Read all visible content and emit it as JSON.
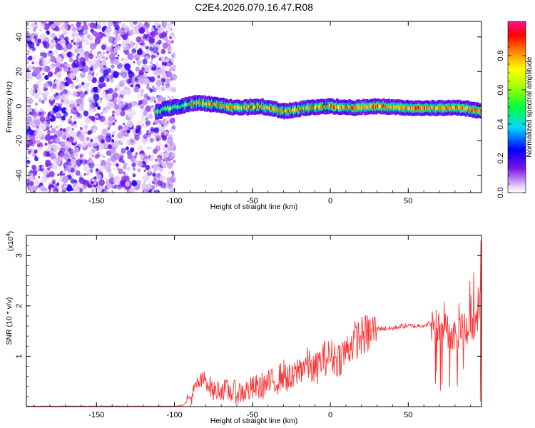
{
  "figure": {
    "title": "C2E4.2026.070.16.47.R08"
  },
  "chart_data": [
    {
      "type": "heatmap",
      "title": "C2E4.2026.070.16.47.R08",
      "xlabel": "Height of straight line (km)",
      "ylabel": "Frequency (Hz)",
      "xlim": [
        -195,
        97
      ],
      "ylim": [
        -50,
        49
      ],
      "x_ticks": [
        -150,
        -100,
        -50,
        0,
        50
      ],
      "y_ticks": [
        -40,
        -20,
        0,
        20,
        40
      ],
      "colorbar": {
        "label": "Normalized spectral amplitude",
        "range": [
          0.0,
          1.0
        ],
        "ticks": [
          "0.0",
          "0.2",
          "0.4",
          "0.6",
          "0.8"
        ],
        "colormap": [
          "#ffffff",
          "#7b16e8",
          "#0000ff",
          "#00d8ff",
          "#00ff3c",
          "#ffff00",
          "#ff8800",
          "#ff0000",
          "#ff1493"
        ]
      },
      "regions": [
        {
          "description_x_range": [
            -195,
            -100
          ],
          "frequency_range": [
            -50,
            49
          ],
          "amplitude_range": [
            0.05,
            0.3
          ]
        },
        {
          "description_x_range": [
            -100,
            97
          ],
          "frequency_range": [
            -4,
            5
          ],
          "amplitude_range": [
            0.2,
            1.0
          ]
        }
      ],
      "ridge_center_points": [
        {
          "x": -108,
          "y": -2
        },
        {
          "x": -85,
          "y": 2
        },
        {
          "x": -75,
          "y": 1
        },
        {
          "x": -60,
          "y": -1
        },
        {
          "x": -45,
          "y": 0
        },
        {
          "x": -30,
          "y": -3
        },
        {
          "x": -15,
          "y": -1
        },
        {
          "x": 0,
          "y": 0
        },
        {
          "x": 15,
          "y": -1
        },
        {
          "x": 30,
          "y": 0
        },
        {
          "x": 50,
          "y": -1
        },
        {
          "x": 70,
          "y": -1
        },
        {
          "x": 85,
          "y": -1
        },
        {
          "x": 97,
          "y": -3
        }
      ]
    },
    {
      "type": "line",
      "xlabel": "Height of straight line (km)",
      "ylabel": "SNR (10 * v/v)",
      "y_multiplier": "(x10^4)",
      "xlim": [
        -195,
        97
      ],
      "ylim": [
        0,
        3.4
      ],
      "x_ticks": [
        -150,
        -100,
        -50,
        0,
        50
      ],
      "y_ticks": [
        1,
        2,
        3
      ],
      "series": [
        {
          "color": "#ff3333",
          "x": [
            -195,
            -150,
            -100,
            -95,
            -90,
            -85,
            -80,
            -75,
            -70,
            -65,
            -60,
            -55,
            -50,
            -45,
            -40,
            -35,
            -30,
            -25,
            -20,
            -15,
            -10,
            -5,
            0,
            5,
            10,
            15,
            20,
            25,
            30,
            35,
            40,
            45,
            50,
            55,
            60,
            65,
            70,
            75,
            80,
            85,
            90,
            95,
            97
          ],
          "y": [
            0.01,
            0.01,
            0.01,
            0.02,
            0.15,
            0.45,
            0.55,
            0.3,
            0.35,
            0.3,
            0.28,
            0.3,
            0.35,
            0.4,
            0.45,
            0.5,
            0.65,
            0.5,
            0.75,
            0.85,
            0.7,
            0.95,
            1.0,
            0.95,
            1.1,
            1.3,
            1.4,
            1.45,
            1.55,
            1.55,
            1.55,
            1.6,
            1.6,
            1.6,
            1.62,
            1.65,
            1.6,
            1.5,
            1.45,
            1.6,
            1.55,
            1.7,
            3.2
          ]
        }
      ]
    }
  ]
}
